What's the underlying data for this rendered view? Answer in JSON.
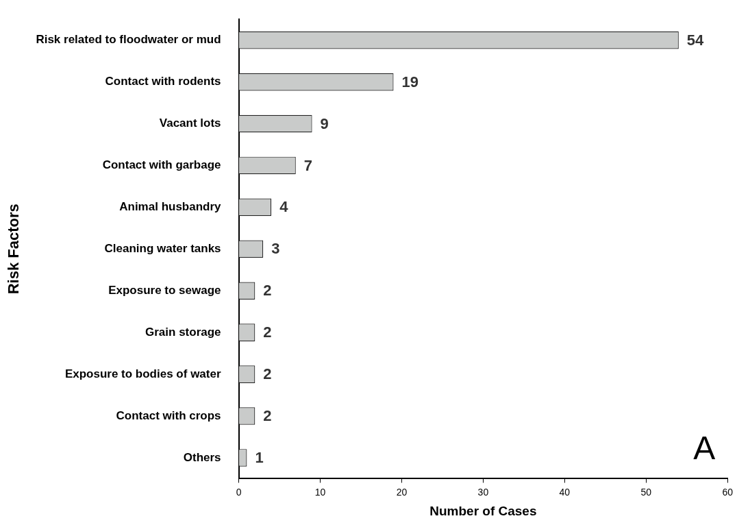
{
  "chart_data": {
    "type": "bar",
    "orientation": "horizontal",
    "xlabel": "Number of Cases",
    "ylabel": "Risk Factors",
    "categories": [
      "Risk related to floodwater or mud",
      "Contact with rodents",
      "Vacant lots",
      "Contact with garbage",
      "Animal husbandry",
      "Cleaning water tanks",
      "Exposure to sewage",
      "Grain storage",
      "Exposure to bodies of water",
      "Contact with crops",
      "Others"
    ],
    "values": [
      54,
      19,
      9,
      7,
      4,
      3,
      2,
      2,
      2,
      2,
      1
    ],
    "color": "#c9cbca",
    "xlim": [
      0,
      60
    ],
    "xticks": [
      0,
      10,
      20,
      30,
      40,
      50,
      60
    ],
    "data_labels": true,
    "annotations": [
      "A"
    ]
  }
}
